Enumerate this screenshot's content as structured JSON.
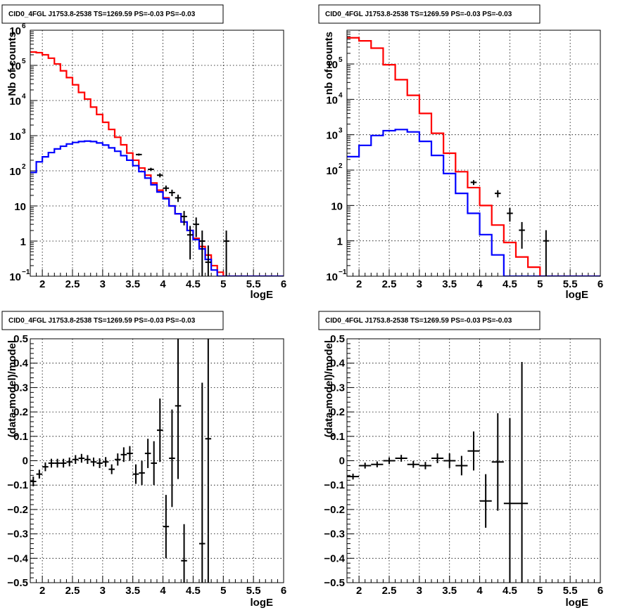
{
  "chart_data": [
    {
      "type": "step-histogram",
      "title": "CID0_4FGL J1753.8-2538 TS=1269.59 PS=-0.03 PS=-0.03",
      "xlabel": "logE",
      "ylabel": "Nb of counts",
      "yscale": "log",
      "xlim": [
        1.8,
        6.0
      ],
      "ylim": [
        0.1,
        1000000
      ],
      "grid": true,
      "x_ticks": [
        "2",
        "2.5",
        "3",
        "3.5",
        "4",
        "4.5",
        "5",
        "5.5",
        "6"
      ],
      "y_ticks": [
        {
          "value": 0.1,
          "base": "10",
          "exp": "−1"
        },
        {
          "value": 1,
          "base": "1",
          "exp": ""
        },
        {
          "value": 10,
          "base": "10",
          "exp": ""
        },
        {
          "value": 100,
          "base": "10",
          "exp": "2"
        },
        {
          "value": 1000,
          "base": "10",
          "exp": "3"
        },
        {
          "value": 10000,
          "base": "10",
          "exp": "4"
        },
        {
          "value": 100000,
          "base": "10",
          "exp": "5"
        },
        {
          "value": 1000000,
          "base": "10",
          "exp": "6"
        }
      ],
      "bin_edges": [
        1.8,
        1.9,
        2.0,
        2.1,
        2.2,
        2.3,
        2.4,
        2.5,
        2.6,
        2.7,
        2.8,
        2.9,
        3.0,
        3.1,
        3.2,
        3.3,
        3.4,
        3.5,
        3.6,
        3.7,
        3.8,
        3.9,
        4.0,
        4.1,
        4.2,
        4.3,
        4.4,
        4.5,
        4.6,
        4.7,
        4.8,
        4.9,
        5.0,
        5.1,
        5.2,
        5.3,
        5.4,
        5.5,
        5.6,
        5.7,
        5.8,
        5.9,
        6.0
      ],
      "series": [
        {
          "color": "#ff0000",
          "values": [
            240000,
            230000,
            200000,
            160000,
            110000,
            70000,
            45000,
            28000,
            17000,
            11000,
            6500,
            4000,
            2400,
            1500,
            900,
            550,
            320,
            200,
            120,
            75,
            45,
            28,
            17,
            10,
            6,
            3.5,
            2,
            1.2,
            0.7,
            0.4,
            0.2,
            0.13,
            0.1,
            0.1,
            0.1,
            0.1,
            0.1,
            0.1,
            0.1,
            0.1,
            0.1,
            0.1
          ]
        },
        {
          "color": "#0000ff",
          "values": [
            90,
            180,
            250,
            330,
            420,
            500,
            580,
            640,
            680,
            700,
            680,
            620,
            540,
            450,
            360,
            270,
            200,
            140,
            95,
            62,
            40,
            25,
            16,
            10,
            6,
            3.5,
            2,
            1.1,
            0.6,
            0.3,
            0.15,
            0.1,
            0.1,
            0.1,
            0.1,
            0.1,
            0.1,
            0.1,
            0.1,
            0.1,
            0.1,
            0.1
          ]
        }
      ],
      "points": [
        {
          "x": 3.6,
          "y": 290,
          "err": 20
        },
        {
          "x": 3.8,
          "y": 110,
          "err": 12
        },
        {
          "x": 3.95,
          "y": 75,
          "err": 10
        },
        {
          "x": 4.05,
          "y": 32,
          "err": 6
        },
        {
          "x": 4.15,
          "y": 24,
          "err": 5
        },
        {
          "x": 4.25,
          "y": 17,
          "err": 4
        },
        {
          "x": 4.35,
          "y": 5,
          "err": 2.2
        },
        {
          "x": 4.45,
          "y": 1.5,
          "err": 1.2
        },
        {
          "x": 4.55,
          "y": 3,
          "err": 1.7
        },
        {
          "x": 4.65,
          "y": 1,
          "err": 1
        },
        {
          "x": 4.75,
          "y": 0.25,
          "err": 0.5
        },
        {
          "x": 5.05,
          "y": 1,
          "err": 1
        }
      ]
    },
    {
      "type": "step-histogram",
      "title": "CID0_4FGL J1753.8-2538 TS=1269.59 PS=-0.03 PS=-0.03",
      "xlabel": "logE",
      "ylabel": "nb of counts",
      "yscale": "log",
      "xlim": [
        1.8,
        6.0
      ],
      "ylim": [
        0.1,
        900000
      ],
      "grid": true,
      "x_ticks": [
        "2",
        "2.5",
        "3",
        "3.5",
        "4",
        "4.5",
        "5",
        "5.5",
        "6"
      ],
      "y_ticks": [
        {
          "value": 0.1,
          "base": "10",
          "exp": "−1"
        },
        {
          "value": 1,
          "base": "1",
          "exp": ""
        },
        {
          "value": 10,
          "base": "10",
          "exp": ""
        },
        {
          "value": 100,
          "base": "10",
          "exp": "2"
        },
        {
          "value": 1000,
          "base": "10",
          "exp": "3"
        },
        {
          "value": 10000,
          "base": "10",
          "exp": "4"
        },
        {
          "value": 100000,
          "base": "10",
          "exp": "5"
        }
      ],
      "bin_edges": [
        1.8,
        2.0,
        2.2,
        2.4,
        2.6,
        2.8,
        3.0,
        3.2,
        3.4,
        3.6,
        3.8,
        4.0,
        4.2,
        4.4,
        4.6,
        4.8,
        5.0,
        5.2,
        5.4,
        5.6,
        5.8,
        6.0
      ],
      "series": [
        {
          "color": "#ff0000",
          "values": [
            550000,
            450000,
            280000,
            95000,
            36000,
            13000,
            4000,
            1100,
            300,
            90,
            32,
            10,
            2.8,
            0.9,
            0.35,
            0.18,
            0.1,
            0.1,
            0.1,
            0.1,
            0.1
          ]
        },
        {
          "color": "#0000ff",
          "values": [
            240,
            500,
            950,
            1300,
            1400,
            1200,
            650,
            260,
            80,
            22,
            6,
            1.5,
            0.4,
            0.1,
            0.1,
            0.1,
            0.1,
            0.1,
            0.1,
            0.1,
            0.1
          ]
        }
      ],
      "points": [
        {
          "x": 3.9,
          "y": 45,
          "err": 7
        },
        {
          "x": 4.3,
          "y": 22,
          "err": 5
        },
        {
          "x": 4.5,
          "y": 6,
          "err": 2.5
        },
        {
          "x": 4.7,
          "y": 2,
          "err": 1.4
        },
        {
          "x": 5.1,
          "y": 1,
          "err": 1
        }
      ]
    },
    {
      "type": "scatter-errorbars",
      "title": "CID0_4FGL J1753.8-2538 TS=1269.59 PS=-0.03 PS=-0.03",
      "xlabel": "logE",
      "ylabel": "(data-model)/model",
      "xlim": [
        1.8,
        6.0
      ],
      "ylim": [
        -0.5,
        0.5
      ],
      "grid": true,
      "x_ticks": [
        "2",
        "2.5",
        "3",
        "3.5",
        "4",
        "4.5",
        "5",
        "5.5",
        "6"
      ],
      "y_ticks": [
        "−0.5",
        "−0.4",
        "−0.3",
        "−0.2",
        "−0.1",
        "0",
        "0.1",
        "0.2",
        "0.3",
        "0.4",
        "0.5"
      ],
      "xerr": 0.05,
      "points": [
        {
          "x": 1.85,
          "y": -0.085,
          "err": 0.02
        },
        {
          "x": 1.95,
          "y": -0.055,
          "err": 0.018
        },
        {
          "x": 2.05,
          "y": -0.025,
          "err": 0.018
        },
        {
          "x": 2.15,
          "y": -0.01,
          "err": 0.018
        },
        {
          "x": 2.25,
          "y": -0.01,
          "err": 0.018
        },
        {
          "x": 2.35,
          "y": -0.01,
          "err": 0.018
        },
        {
          "x": 2.45,
          "y": -0.005,
          "err": 0.018
        },
        {
          "x": 2.55,
          "y": 0.005,
          "err": 0.018
        },
        {
          "x": 2.65,
          "y": 0.01,
          "err": 0.018
        },
        {
          "x": 2.75,
          "y": 0.005,
          "err": 0.018
        },
        {
          "x": 2.85,
          "y": -0.005,
          "err": 0.018
        },
        {
          "x": 2.95,
          "y": -0.01,
          "err": 0.02
        },
        {
          "x": 3.05,
          "y": -0.005,
          "err": 0.02
        },
        {
          "x": 3.15,
          "y": -0.035,
          "err": 0.02
        },
        {
          "x": 3.25,
          "y": 0.005,
          "err": 0.025
        },
        {
          "x": 3.35,
          "y": 0.025,
          "err": 0.03
        },
        {
          "x": 3.45,
          "y": 0.03,
          "err": 0.03
        },
        {
          "x": 3.55,
          "y": -0.055,
          "err": 0.04
        },
        {
          "x": 3.65,
          "y": -0.05,
          "err": 0.05
        },
        {
          "x": 3.75,
          "y": 0.03,
          "err": 0.06
        },
        {
          "x": 3.85,
          "y": -0.01,
          "err": 0.09
        },
        {
          "x": 3.95,
          "y": 0.125,
          "err": 0.13
        },
        {
          "x": 4.05,
          "y": -0.27,
          "err": 0.13
        },
        {
          "x": 4.15,
          "y": 0.01,
          "err": 0.2
        },
        {
          "x": 4.25,
          "y": 0.225,
          "err": 0.3
        },
        {
          "x": 4.35,
          "y": -0.41,
          "err": 0.15
        },
        {
          "x": 4.65,
          "y": -0.34,
          "err": 0.66
        },
        {
          "x": 4.75,
          "y": 0.09,
          "err": 0.6
        }
      ]
    },
    {
      "type": "scatter-errorbars",
      "title": "CID0_4FGL J1753.8-2538 TS=1269.59 PS=-0.03 PS=-0.03",
      "xlabel": "logE",
      "ylabel": "(data-model)/model",
      "xlim": [
        1.8,
        6.0
      ],
      "ylim": [
        -0.5,
        0.5
      ],
      "grid": true,
      "x_ticks": [
        "2",
        "2.5",
        "3",
        "3.5",
        "4",
        "4.5",
        "5",
        "5.5",
        "6"
      ],
      "y_ticks": [
        "−0.5",
        "−0.4",
        "−0.3",
        "−0.2",
        "−0.1",
        "0",
        "0.1",
        "0.2",
        "0.3",
        "0.4",
        "0.5"
      ],
      "xerr": 0.1,
      "points": [
        {
          "x": 1.9,
          "y": -0.065,
          "err": 0.012
        },
        {
          "x": 2.1,
          "y": -0.02,
          "err": 0.012
        },
        {
          "x": 2.3,
          "y": -0.015,
          "err": 0.012
        },
        {
          "x": 2.5,
          "y": 0.0,
          "err": 0.014
        },
        {
          "x": 2.7,
          "y": 0.01,
          "err": 0.014
        },
        {
          "x": 2.9,
          "y": -0.015,
          "err": 0.014
        },
        {
          "x": 3.1,
          "y": -0.02,
          "err": 0.015
        },
        {
          "x": 3.3,
          "y": 0.01,
          "err": 0.02
        },
        {
          "x": 3.5,
          "y": 0.0,
          "err": 0.03
        },
        {
          "x": 3.7,
          "y": -0.02,
          "err": 0.04
        },
        {
          "x": 3.9,
          "y": 0.04,
          "err": 0.08
        },
        {
          "x": 4.1,
          "y": -0.165,
          "err": 0.11
        },
        {
          "x": 4.3,
          "y": -0.005,
          "err": 0.2
        },
        {
          "x": 4.5,
          "y": -0.175,
          "err": 0.35
        },
        {
          "x": 4.7,
          "y": -0.175,
          "err": 0.58
        }
      ]
    }
  ]
}
